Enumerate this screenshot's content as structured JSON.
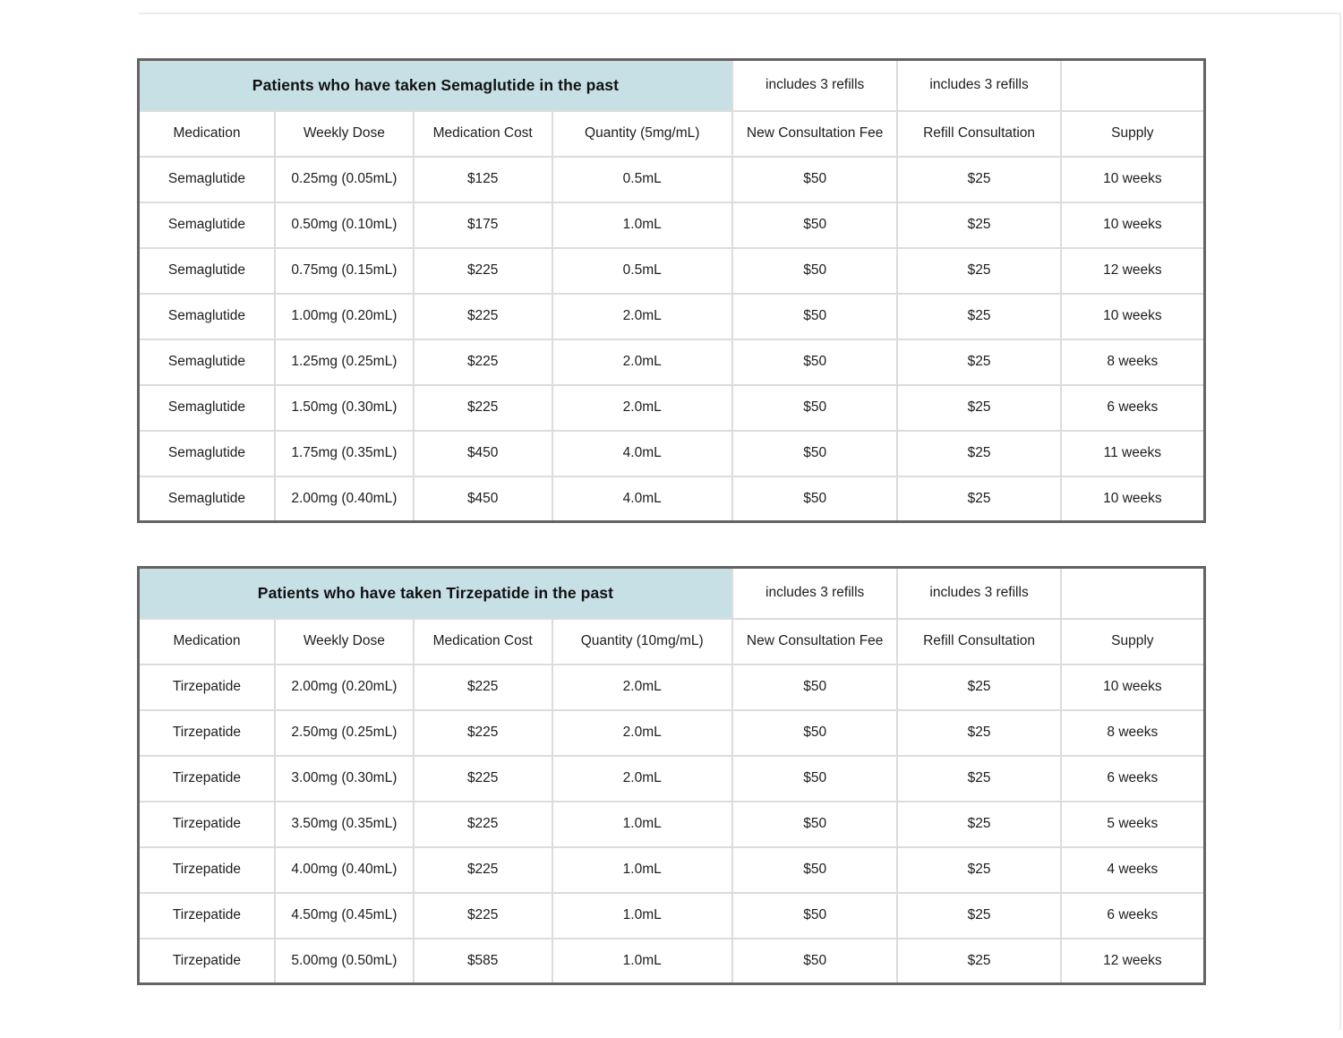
{
  "colors": {
    "banner_bg": "#c7e0e6",
    "outer_border": "#636363",
    "grid_line": "#dcdcdc",
    "text": "#1d1d1d",
    "page_edge": "#ececec"
  },
  "tables": [
    {
      "title": "Patients who have taken Semaglutide in the past",
      "notes": [
        "includes 3 refills",
        "includes 3 refills"
      ],
      "columns": [
        "Medication",
        "Weekly Dose",
        "Medication Cost",
        "Quantity (5mg/mL)",
        "New Consultation Fee",
        "Refill Consultation",
        "Supply"
      ],
      "rows": [
        [
          "Semaglutide",
          "0.25mg (0.05mL)",
          "$125",
          "0.5mL",
          "$50",
          "$25",
          "10 weeks"
        ],
        [
          "Semaglutide",
          "0.50mg (0.10mL)",
          "$175",
          "1.0mL",
          "$50",
          "$25",
          "10 weeks"
        ],
        [
          "Semaglutide",
          "0.75mg (0.15mL)",
          "$225",
          "0.5mL",
          "$50",
          "$25",
          "12 weeks"
        ],
        [
          "Semaglutide",
          "1.00mg (0.20mL)",
          "$225",
          "2.0mL",
          "$50",
          "$25",
          "10 weeks"
        ],
        [
          "Semaglutide",
          "1.25mg (0.25mL)",
          "$225",
          "2.0mL",
          "$50",
          "$25",
          "8 weeks"
        ],
        [
          "Semaglutide",
          "1.50mg (0.30mL)",
          "$225",
          "2.0mL",
          "$50",
          "$25",
          "6 weeks"
        ],
        [
          "Semaglutide",
          "1.75mg (0.35mL)",
          "$450",
          "4.0mL",
          "$50",
          "$25",
          "11 weeks"
        ],
        [
          "Semaglutide",
          "2.00mg (0.40mL)",
          "$450",
          "4.0mL",
          "$50",
          "$25",
          "10 weeks"
        ]
      ]
    },
    {
      "title": "Patients who have taken Tirzepatide in the past",
      "notes": [
        "includes 3 refills",
        "includes 3 refills"
      ],
      "columns": [
        "Medication",
        "Weekly Dose",
        "Medication Cost",
        "Quantity (10mg/mL)",
        "New Consultation Fee",
        "Refill Consultation",
        "Supply"
      ],
      "rows": [
        [
          "Tirzepatide",
          "2.00mg (0.20mL)",
          "$225",
          "2.0mL",
          "$50",
          "$25",
          "10 weeks"
        ],
        [
          "Tirzepatide",
          "2.50mg (0.25mL)",
          "$225",
          "2.0mL",
          "$50",
          "$25",
          "8 weeks"
        ],
        [
          "Tirzepatide",
          "3.00mg (0.30mL)",
          "$225",
          "2.0mL",
          "$50",
          "$25",
          "6 weeks"
        ],
        [
          "Tirzepatide",
          "3.50mg (0.35mL)",
          "$225",
          "1.0mL",
          "$50",
          "$25",
          "5 weeks"
        ],
        [
          "Tirzepatide",
          "4.00mg (0.40mL)",
          "$225",
          "1.0mL",
          "$50",
          "$25",
          "4 weeks"
        ],
        [
          "Tirzepatide",
          "4.50mg (0.45mL)",
          "$225",
          "1.0mL",
          "$50",
          "$25",
          "6 weeks"
        ],
        [
          "Tirzepatide",
          "5.00mg (0.50mL)",
          "$585",
          "1.0mL",
          "$50",
          "$25",
          "12 weeks"
        ]
      ]
    }
  ]
}
